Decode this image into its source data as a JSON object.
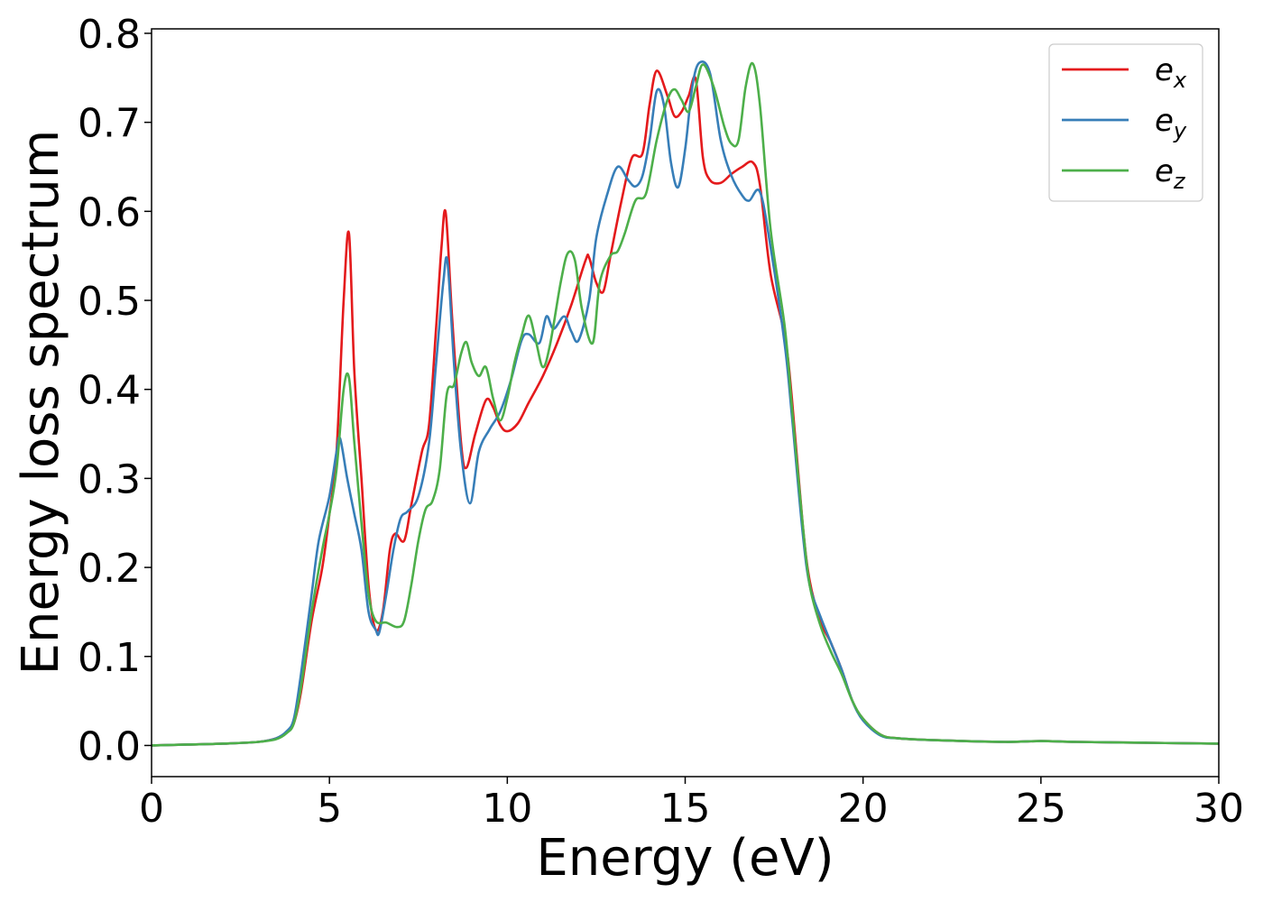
{
  "chart_data": {
    "type": "line",
    "xlabel": "Energy (eV)",
    "ylabel": "Energy loss spectrum",
    "xlim": [
      0,
      30
    ],
    "ylim": [
      -0.035,
      0.805
    ],
    "xticks": [
      0,
      5,
      10,
      15,
      20,
      25,
      30
    ],
    "yticks": [
      0.0,
      0.1,
      0.2,
      0.3,
      0.4,
      0.5,
      0.6,
      0.7,
      0.8
    ],
    "xtick_labels": [
      "0",
      "5",
      "10",
      "15",
      "20",
      "25",
      "30"
    ],
    "ytick_labels": [
      "0.0",
      "0.1",
      "0.2",
      "0.3",
      "0.4",
      "0.5",
      "0.6",
      "0.7",
      "0.8"
    ],
    "grid": false,
    "legend_position": "top-right",
    "series": [
      {
        "name": "e_x",
        "label_base": "e",
        "label_sub": "x",
        "color": "#e41a1c",
        "points": [
          [
            0,
            0.0
          ],
          [
            1,
            0.001
          ],
          [
            2,
            0.002
          ],
          [
            3,
            0.004
          ],
          [
            3.5,
            0.008
          ],
          [
            3.8,
            0.015
          ],
          [
            4.0,
            0.025
          ],
          [
            4.2,
            0.06
          ],
          [
            4.5,
            0.14
          ],
          [
            4.8,
            0.2
          ],
          [
            5.0,
            0.26
          ],
          [
            5.2,
            0.33
          ],
          [
            5.4,
            0.5
          ],
          [
            5.55,
            0.575
          ],
          [
            5.7,
            0.42
          ],
          [
            5.9,
            0.3
          ],
          [
            6.1,
            0.18
          ],
          [
            6.3,
            0.13
          ],
          [
            6.5,
            0.15
          ],
          [
            6.7,
            0.22
          ],
          [
            6.85,
            0.238
          ],
          [
            7.1,
            0.23
          ],
          [
            7.3,
            0.27
          ],
          [
            7.6,
            0.33
          ],
          [
            7.8,
            0.36
          ],
          [
            8.0,
            0.47
          ],
          [
            8.15,
            0.56
          ],
          [
            8.27,
            0.598
          ],
          [
            8.45,
            0.48
          ],
          [
            8.7,
            0.34
          ],
          [
            8.85,
            0.312
          ],
          [
            9.1,
            0.35
          ],
          [
            9.4,
            0.388
          ],
          [
            9.6,
            0.38
          ],
          [
            9.8,
            0.36
          ],
          [
            10.0,
            0.353
          ],
          [
            10.3,
            0.362
          ],
          [
            10.6,
            0.385
          ],
          [
            11.0,
            0.415
          ],
          [
            11.4,
            0.452
          ],
          [
            11.8,
            0.495
          ],
          [
            12.2,
            0.545
          ],
          [
            12.3,
            0.548
          ],
          [
            12.5,
            0.52
          ],
          [
            12.7,
            0.51
          ],
          [
            12.9,
            0.55
          ],
          [
            13.2,
            0.61
          ],
          [
            13.5,
            0.66
          ],
          [
            13.8,
            0.665
          ],
          [
            14.0,
            0.72
          ],
          [
            14.2,
            0.758
          ],
          [
            14.5,
            0.73
          ],
          [
            14.7,
            0.707
          ],
          [
            14.9,
            0.712
          ],
          [
            15.1,
            0.73
          ],
          [
            15.3,
            0.748
          ],
          [
            15.5,
            0.66
          ],
          [
            15.7,
            0.635
          ],
          [
            16.0,
            0.632
          ],
          [
            16.3,
            0.642
          ],
          [
            16.6,
            0.65
          ],
          [
            16.9,
            0.655
          ],
          [
            17.1,
            0.63
          ],
          [
            17.4,
            0.53
          ],
          [
            17.8,
            0.46
          ],
          [
            18.0,
            0.39
          ],
          [
            18.3,
            0.25
          ],
          [
            18.5,
            0.185
          ],
          [
            18.8,
            0.14
          ],
          [
            19.1,
            0.115
          ],
          [
            19.4,
            0.085
          ],
          [
            19.7,
            0.05
          ],
          [
            20.0,
            0.03
          ],
          [
            20.5,
            0.012
          ],
          [
            21.0,
            0.008
          ],
          [
            22.0,
            0.006
          ],
          [
            24.0,
            0.004
          ],
          [
            25.0,
            0.005
          ],
          [
            26.0,
            0.004
          ],
          [
            28.0,
            0.003
          ],
          [
            30.0,
            0.002
          ]
        ]
      },
      {
        "name": "e_y",
        "label_base": "e",
        "label_sub": "y",
        "color": "#377eb8",
        "points": [
          [
            0,
            0.0
          ],
          [
            1,
            0.001
          ],
          [
            2,
            0.002
          ],
          [
            3,
            0.004
          ],
          [
            3.5,
            0.008
          ],
          [
            3.8,
            0.016
          ],
          [
            4.0,
            0.03
          ],
          [
            4.2,
            0.08
          ],
          [
            4.5,
            0.17
          ],
          [
            4.7,
            0.23
          ],
          [
            5.0,
            0.28
          ],
          [
            5.2,
            0.33
          ],
          [
            5.3,
            0.345
          ],
          [
            5.5,
            0.3
          ],
          [
            5.7,
            0.26
          ],
          [
            5.9,
            0.22
          ],
          [
            6.1,
            0.15
          ],
          [
            6.3,
            0.13
          ],
          [
            6.4,
            0.127
          ],
          [
            6.6,
            0.17
          ],
          [
            6.8,
            0.22
          ],
          [
            7.0,
            0.255
          ],
          [
            7.2,
            0.263
          ],
          [
            7.5,
            0.28
          ],
          [
            7.8,
            0.34
          ],
          [
            8.0,
            0.43
          ],
          [
            8.2,
            0.52
          ],
          [
            8.32,
            0.543
          ],
          [
            8.5,
            0.43
          ],
          [
            8.7,
            0.33
          ],
          [
            8.95,
            0.272
          ],
          [
            9.2,
            0.33
          ],
          [
            9.5,
            0.355
          ],
          [
            9.8,
            0.375
          ],
          [
            10.1,
            0.41
          ],
          [
            10.4,
            0.455
          ],
          [
            10.6,
            0.462
          ],
          [
            10.9,
            0.452
          ],
          [
            11.1,
            0.482
          ],
          [
            11.3,
            0.468
          ],
          [
            11.6,
            0.482
          ],
          [
            11.8,
            0.465
          ],
          [
            12.0,
            0.455
          ],
          [
            12.3,
            0.5
          ],
          [
            12.5,
            0.57
          ],
          [
            12.8,
            0.618
          ],
          [
            13.1,
            0.65
          ],
          [
            13.4,
            0.635
          ],
          [
            13.6,
            0.628
          ],
          [
            13.8,
            0.64
          ],
          [
            14.0,
            0.68
          ],
          [
            14.2,
            0.735
          ],
          [
            14.4,
            0.72
          ],
          [
            14.6,
            0.655
          ],
          [
            14.8,
            0.627
          ],
          [
            15.0,
            0.67
          ],
          [
            15.2,
            0.74
          ],
          [
            15.4,
            0.767
          ],
          [
            15.7,
            0.755
          ],
          [
            16.0,
            0.68
          ],
          [
            16.3,
            0.64
          ],
          [
            16.6,
            0.618
          ],
          [
            16.8,
            0.612
          ],
          [
            17.1,
            0.622
          ],
          [
            17.4,
            0.56
          ],
          [
            17.8,
            0.45
          ],
          [
            18.0,
            0.37
          ],
          [
            18.3,
            0.24
          ],
          [
            18.5,
            0.18
          ],
          [
            18.8,
            0.145
          ],
          [
            19.1,
            0.115
          ],
          [
            19.4,
            0.085
          ],
          [
            19.7,
            0.05
          ],
          [
            20.0,
            0.028
          ],
          [
            20.5,
            0.011
          ],
          [
            21.0,
            0.008
          ],
          [
            22.0,
            0.006
          ],
          [
            24.0,
            0.004
          ],
          [
            25.0,
            0.005
          ],
          [
            26.0,
            0.004
          ],
          [
            28.0,
            0.003
          ],
          [
            30.0,
            0.002
          ]
        ]
      },
      {
        "name": "e_z",
        "label_base": "e",
        "label_sub": "z",
        "color": "#4daf4a",
        "points": [
          [
            0,
            0.0
          ],
          [
            1,
            0.001
          ],
          [
            2,
            0.002
          ],
          [
            3,
            0.004
          ],
          [
            3.5,
            0.007
          ],
          [
            3.8,
            0.014
          ],
          [
            4.0,
            0.025
          ],
          [
            4.2,
            0.065
          ],
          [
            4.5,
            0.15
          ],
          [
            4.8,
            0.22
          ],
          [
            5.0,
            0.26
          ],
          [
            5.2,
            0.31
          ],
          [
            5.4,
            0.4
          ],
          [
            5.55,
            0.413
          ],
          [
            5.7,
            0.34
          ],
          [
            5.9,
            0.25
          ],
          [
            6.1,
            0.17
          ],
          [
            6.3,
            0.14
          ],
          [
            6.6,
            0.138
          ],
          [
            6.9,
            0.133
          ],
          [
            7.1,
            0.14
          ],
          [
            7.3,
            0.18
          ],
          [
            7.5,
            0.23
          ],
          [
            7.7,
            0.265
          ],
          [
            7.9,
            0.275
          ],
          [
            8.1,
            0.31
          ],
          [
            8.3,
            0.395
          ],
          [
            8.5,
            0.405
          ],
          [
            8.7,
            0.44
          ],
          [
            8.85,
            0.453
          ],
          [
            9.0,
            0.43
          ],
          [
            9.2,
            0.415
          ],
          [
            9.4,
            0.425
          ],
          [
            9.6,
            0.39
          ],
          [
            9.8,
            0.365
          ],
          [
            10.0,
            0.39
          ],
          [
            10.2,
            0.43
          ],
          [
            10.4,
            0.46
          ],
          [
            10.6,
            0.483
          ],
          [
            10.8,
            0.455
          ],
          [
            11.0,
            0.425
          ],
          [
            11.2,
            0.45
          ],
          [
            11.5,
            0.52
          ],
          [
            11.7,
            0.553
          ],
          [
            11.9,
            0.545
          ],
          [
            12.1,
            0.49
          ],
          [
            12.4,
            0.452
          ],
          [
            12.6,
            0.52
          ],
          [
            12.9,
            0.55
          ],
          [
            13.1,
            0.555
          ],
          [
            13.3,
            0.575
          ],
          [
            13.6,
            0.612
          ],
          [
            13.9,
            0.62
          ],
          [
            14.2,
            0.68
          ],
          [
            14.5,
            0.725
          ],
          [
            14.7,
            0.737
          ],
          [
            14.9,
            0.725
          ],
          [
            15.1,
            0.712
          ],
          [
            15.3,
            0.74
          ],
          [
            15.5,
            0.765
          ],
          [
            15.8,
            0.74
          ],
          [
            16.1,
            0.695
          ],
          [
            16.3,
            0.676
          ],
          [
            16.5,
            0.68
          ],
          [
            16.7,
            0.74
          ],
          [
            16.9,
            0.766
          ],
          [
            17.1,
            0.72
          ],
          [
            17.4,
            0.58
          ],
          [
            17.8,
            0.47
          ],
          [
            18.0,
            0.38
          ],
          [
            18.3,
            0.25
          ],
          [
            18.5,
            0.18
          ],
          [
            18.8,
            0.135
          ],
          [
            19.1,
            0.105
          ],
          [
            19.4,
            0.08
          ],
          [
            19.7,
            0.05
          ],
          [
            20.0,
            0.03
          ],
          [
            20.5,
            0.012
          ],
          [
            21.0,
            0.008
          ],
          [
            22.0,
            0.006
          ],
          [
            24.0,
            0.004
          ],
          [
            25.0,
            0.005
          ],
          [
            26.0,
            0.004
          ],
          [
            28.0,
            0.003
          ],
          [
            30.0,
            0.002
          ]
        ]
      }
    ]
  }
}
